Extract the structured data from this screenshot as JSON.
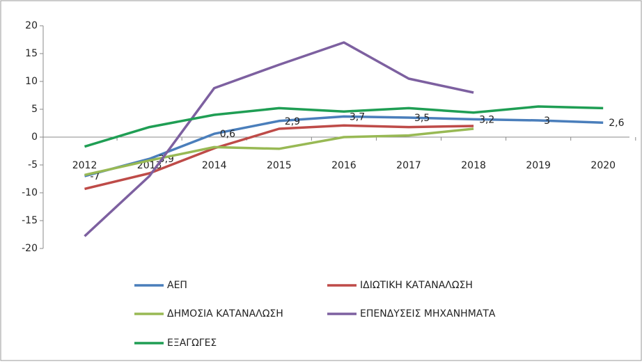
{
  "chart_data": {
    "type": "line",
    "categories": [
      "2012",
      "2013",
      "2014",
      "2015",
      "2016",
      "2017",
      "2018",
      "2019",
      "2020"
    ],
    "series": [
      {
        "name": "ΑΕΠ",
        "color": "#4a7ebb",
        "values": [
          -7,
          -3.9,
          0.6,
          2.9,
          3.7,
          3.5,
          3.2,
          3,
          2.6
        ],
        "value_labels": [
          "-7",
          "-3,9",
          "0,6",
          "2,9",
          "3,7",
          "3,5",
          "3,2",
          "3",
          "2,6"
        ]
      },
      {
        "name": "ΙΔΙΩΤΙΚΗ ΚΑΤΑΝΑΛΩΣΗ",
        "color": "#be4b48",
        "values": [
          -9.3,
          -6.5,
          -2,
          1.5,
          2.1,
          1.8,
          2.0,
          null,
          null
        ]
      },
      {
        "name": "ΔΗΜΟΣΙΑ ΚΑΤΑΝΑΛΩΣΗ",
        "color": "#98b954",
        "values": [
          -6.8,
          -4.2,
          -1.8,
          -2.1,
          0,
          0.3,
          1.5,
          null,
          null
        ]
      },
      {
        "name": "ΕΠΕΝΔΥΣΕΙΣ ΜΗΧΑΝΗΜΑΤΑ",
        "color": "#7d60a0",
        "values": [
          -17.8,
          -7,
          8.8,
          13,
          17,
          10.5,
          8,
          null,
          null
        ]
      },
      {
        "name": "ΕΞΑΓΩΓΕΣ",
        "color": "#1f9e54",
        "values": [
          -1.7,
          1.8,
          4,
          5.2,
          4.6,
          5.2,
          4.4,
          5.5,
          5.2
        ]
      }
    ],
    "ylim": [
      -20,
      20
    ],
    "yticks": [
      -20,
      -15,
      -10,
      -5,
      0,
      5,
      10,
      15,
      20
    ]
  }
}
